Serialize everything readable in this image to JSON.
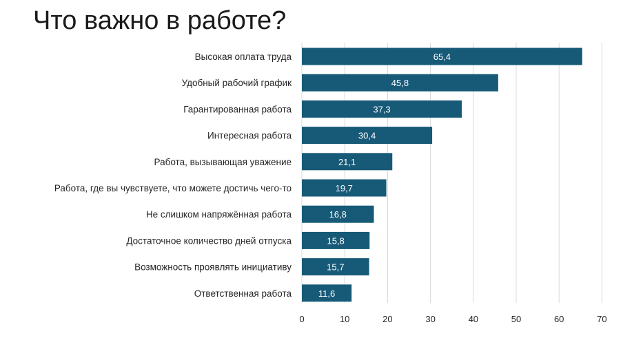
{
  "title": "Что важно в работе?",
  "chart_data": {
    "type": "bar",
    "orientation": "horizontal",
    "categories": [
      "Высокая оплата труда",
      "Удобный рабочий график",
      "Гарантированная работа",
      "Интересная работа",
      "Работа, вызывающая уважение",
      "Работа, где вы чувствуете, что можете достичь чего-то",
      "Не слишком напряжённая работа",
      "Достаточное количество дней отпуска",
      "Возможность проявлять инициативу",
      "Ответственная работа"
    ],
    "values": [
      65.4,
      45.8,
      37.3,
      30.4,
      21.1,
      19.7,
      16.8,
      15.8,
      15.7,
      11.6
    ],
    "value_labels": [
      "65,4",
      "45,8",
      "37,3",
      "30,4",
      "21,1",
      "19,7",
      "16,8",
      "15,8",
      "15,7",
      "11,6"
    ],
    "x_ticks": [
      "0",
      "10",
      "20",
      "30",
      "40",
      "50",
      "60",
      "70"
    ],
    "xlim": [
      0,
      70
    ],
    "grid": "vertical",
    "legend": "none",
    "bar_color": "#175a78",
    "label_color": "#ffffff",
    "grid_color": "#d9d9d9",
    "text_color": "#262626"
  }
}
